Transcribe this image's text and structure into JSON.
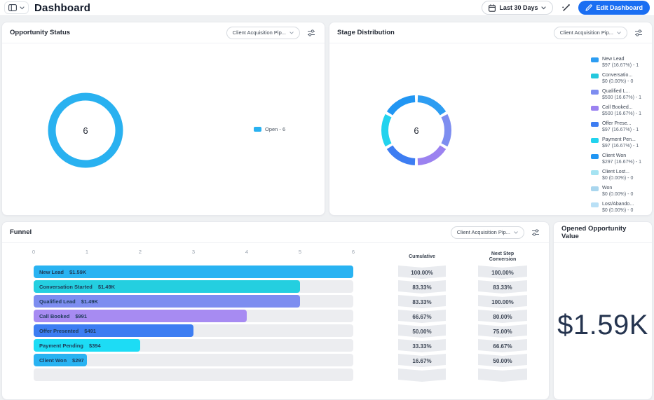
{
  "topbar": {
    "title": "Dashboard",
    "date_range": "Last 30 Days",
    "edit_button": "Edit Dashboard"
  },
  "colors": {
    "accent_blue": "#1a6ef2",
    "page_bg": "#eff1f3",
    "open_status_blue": "#29b1f0"
  },
  "opportunity_status": {
    "title": "Opportunity Status",
    "pipeline_selector": "Client Acquisition Pip...",
    "chart_data": {
      "type": "donut",
      "center_label": "6",
      "segments": [
        {
          "label": "Open",
          "value": 6,
          "color": "#29b1f0"
        }
      ],
      "legend": [
        {
          "label": "Open - 6",
          "color": "#29b1f0"
        }
      ]
    }
  },
  "stage_distribution": {
    "title": "Stage Distribution",
    "pipeline_selector": "Client Acquisition Pip...",
    "chart_data": {
      "type": "donut",
      "center_label": "6",
      "segments": [
        {
          "label": "New Lead",
          "color": "#2d9df2"
        },
        {
          "label": "Qualified Lead",
          "color": "#7d8df0"
        },
        {
          "label": "Call Booked",
          "color": "#9b82f0"
        },
        {
          "label": "Offer Presented",
          "color": "#3d7df2"
        },
        {
          "label": "Payment Pending",
          "color": "#22d3ee"
        },
        {
          "label": "Client Won",
          "color": "#2196f3"
        }
      ],
      "legend": [
        {
          "name": "New Lead",
          "detail": "$97 (16.67%) - 1",
          "color": "#2d9df2"
        },
        {
          "name": "Conversatio...",
          "detail": "$0 (0.00%) - 0",
          "color": "#24c8dd"
        },
        {
          "name": "Qualified L...",
          "detail": "$500 (16.67%) - 1",
          "color": "#7d8df0"
        },
        {
          "name": "Call Booked...",
          "detail": "$500 (16.67%) - 1",
          "color": "#9b82f0"
        },
        {
          "name": "Offer Prese...",
          "detail": "$97 (16.67%) - 1",
          "color": "#3d7df2"
        },
        {
          "name": "Payment Pen...",
          "detail": "$97 (16.67%) - 1",
          "color": "#22d3ee"
        },
        {
          "name": "Client Won",
          "detail": "$297 (16.67%) - 1",
          "color": "#2196f3"
        },
        {
          "name": "Client Lost...",
          "detail": "$0 (0.00%) - 0",
          "color": "#a5e3f2"
        },
        {
          "name": "Won",
          "detail": "$0 (0.00%) - 0",
          "color": "#a9d6ee"
        },
        {
          "name": "Lost/Abando...",
          "detail": "$0 (0.00%) - 0",
          "color": "#b9e0f6"
        }
      ]
    }
  },
  "funnel": {
    "title": "Funnel",
    "pipeline_selector": "Client Acquisition Pip...",
    "axis_ticks": [
      "0",
      "1",
      "2",
      "3",
      "4",
      "5",
      "6"
    ],
    "cumulative_header": "Cumulative",
    "next_step_header": "Next Step Conversion",
    "chart_data": {
      "type": "funnel-bar",
      "x_range": [
        0,
        6
      ],
      "stages": [
        {
          "label": "New Lead",
          "amount": "$1.59K",
          "count": 6,
          "color": "#29b3f2",
          "cumulative": "100.00%",
          "next_step": "100.00%"
        },
        {
          "label": "Conversation Started",
          "amount": "$1.49K",
          "count": 5,
          "color": "#24cfe0",
          "cumulative": "83.33%",
          "next_step": "83.33%"
        },
        {
          "label": "Qualified Lead",
          "amount": "$1.49K",
          "count": 5,
          "color": "#7d8df0",
          "cumulative": "83.33%",
          "next_step": "100.00%"
        },
        {
          "label": "Call Booked",
          "amount": "$991",
          "count": 4,
          "color": "#a78bf2",
          "cumulative": "66.67%",
          "next_step": "80.00%"
        },
        {
          "label": "Offer Presented",
          "amount": "$491",
          "count": 3,
          "color": "#3d7df2",
          "cumulative": "50.00%",
          "next_step": "75.00%"
        },
        {
          "label": "Payment Pending",
          "amount": "$394",
          "count": 2,
          "color": "#1ddcf5",
          "cumulative": "33.33%",
          "next_step": "66.67%"
        },
        {
          "label": "Client Won",
          "amount": "$297",
          "count": 1,
          "color": "#29b3f2",
          "cumulative": "16.67%",
          "next_step": "50.00%"
        }
      ]
    }
  },
  "opened_opportunity_value": {
    "title": "Opened Opportunity Value",
    "value": "$1.59K"
  }
}
